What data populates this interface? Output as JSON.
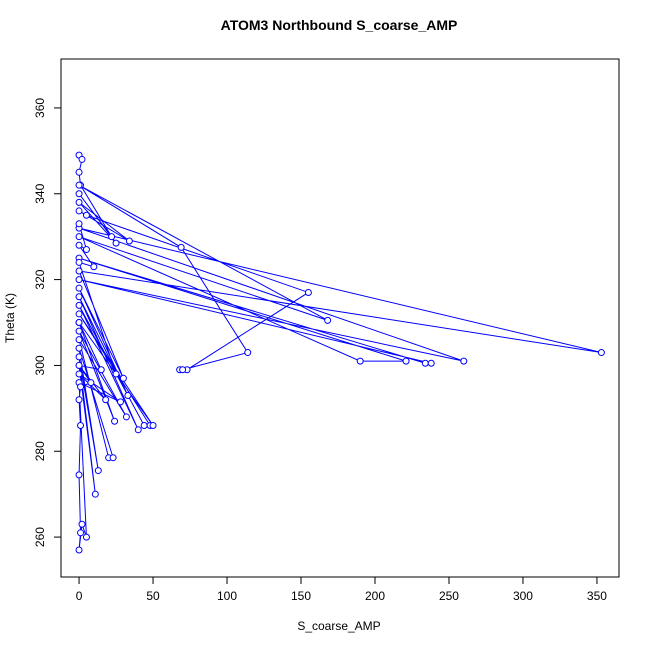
{
  "chart_data": {
    "type": "line_points",
    "title": "ATOM3 Northbound S_coarse_AMP",
    "x_label": "S_coarse_AMP",
    "y_label": "Theta (K)",
    "color": "#0000ff",
    "xlim": [
      -12.2,
      364.9
    ],
    "ylim": [
      250.7,
      371.4
    ],
    "xticks": [
      0,
      50,
      100,
      150,
      200,
      250,
      300,
      350
    ],
    "yticks": [
      260,
      280,
      300,
      320,
      340,
      360
    ],
    "x": [
      0,
      2,
      0,
      1,
      22,
      0,
      25,
      0,
      34,
      0,
      5,
      155,
      73,
      68,
      70,
      114,
      69,
      0,
      168,
      0,
      190,
      221,
      0,
      234,
      238,
      0,
      260,
      0,
      353,
      0,
      30,
      0,
      33,
      0,
      40,
      0,
      44,
      48,
      0,
      50,
      0,
      24,
      0,
      32,
      0,
      20,
      23,
      0,
      13,
      0,
      11,
      0,
      18,
      0,
      28,
      0,
      5,
      2,
      0,
      1,
      0,
      1,
      0,
      1,
      8,
      0,
      15,
      0,
      25,
      0,
      10,
      0,
      5,
      0
    ],
    "y": [
      349,
      348,
      345,
      342,
      330,
      340,
      328.5,
      338,
      329,
      336,
      335,
      317,
      299,
      299,
      299,
      303,
      327.5,
      342,
      310.5,
      330,
      301,
      301,
      325,
      300.5,
      300.5,
      320,
      301,
      332,
      303,
      322,
      297,
      318,
      293,
      316,
      285,
      314,
      286,
      286,
      312,
      286,
      310,
      287,
      308,
      288,
      306,
      278.5,
      278.5,
      304,
      275.5,
      302,
      270,
      300,
      292,
      298,
      291.5,
      296,
      260,
      263,
      257,
      261,
      274.5,
      286,
      292,
      295,
      296,
      300,
      299,
      310,
      298,
      324,
      323,
      328,
      327,
      333
    ]
  }
}
